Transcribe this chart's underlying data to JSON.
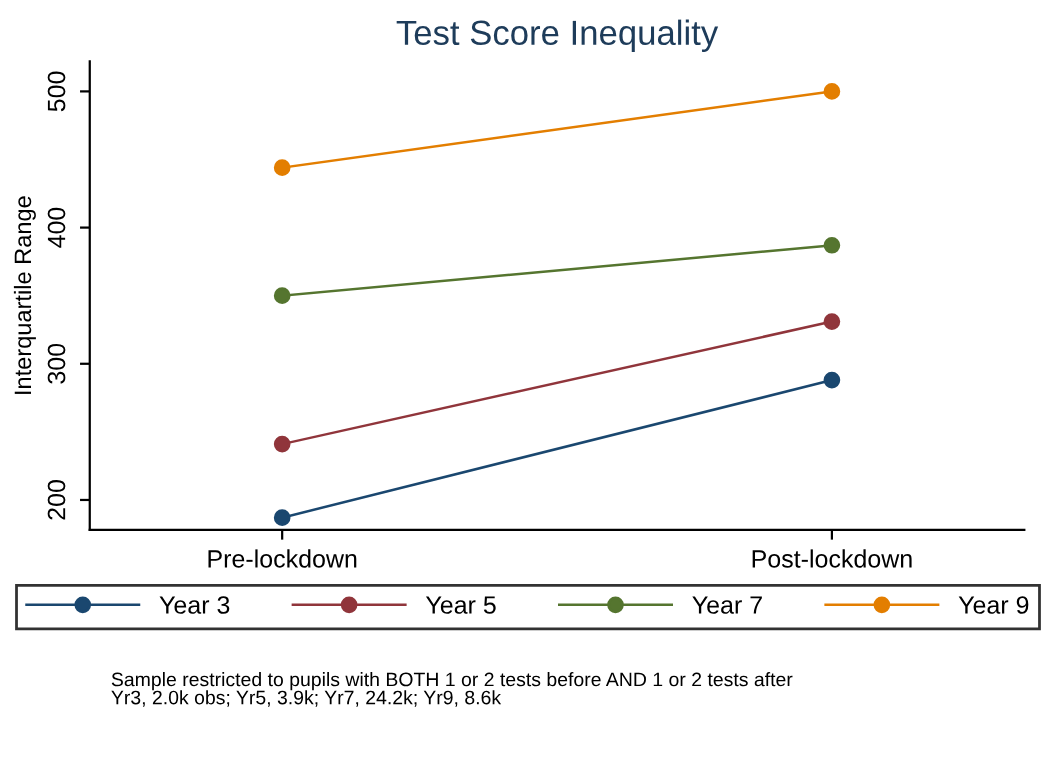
{
  "chart_data": {
    "type": "line",
    "title": "Test Score Inequality",
    "ylabel": "Interquartile Range",
    "categories": [
      "Pre-lockdown",
      "Post-lockdown"
    ],
    "series": [
      {
        "name": "Year 3",
        "color": "#1a476f",
        "values": [
          187,
          288
        ]
      },
      {
        "name": "Year 5",
        "color": "#90353b",
        "values": [
          241,
          331
        ]
      },
      {
        "name": "Year 7",
        "color": "#55752f",
        "values": [
          350,
          387
        ]
      },
      {
        "name": "Year 9",
        "color": "#e37e00",
        "values": [
          444,
          500
        ]
      }
    ],
    "ylim": [
      178,
      522
    ],
    "yticks": [
      200,
      300,
      400,
      500
    ],
    "grid": false,
    "legend": "bottom",
    "marker": "circle",
    "line_style": "solid",
    "annotations": [
      "Sample restricted to pupils with BOTH 1 or 2 tests before AND 1 or 2 tests after\nYr3, 2.0k obs; Yr5, 3.9k; Yr7, 24.2k; Yr9, 8.6k"
    ]
  }
}
